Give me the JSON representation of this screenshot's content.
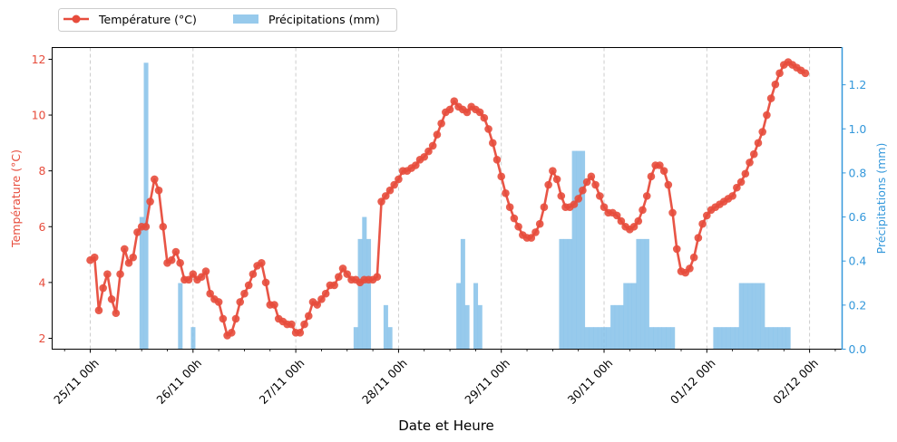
{
  "chart_data": {
    "type": "line+bar",
    "title": "",
    "xlabel": "Date et Heure",
    "ylabel_left": "Température (°C)",
    "ylabel_right": "Précipitations (mm)",
    "x_unit": "hours since 25/11 00h",
    "x_ticks": [
      {
        "hour": 0,
        "label": "25/11 00h"
      },
      {
        "hour": 24,
        "label": "26/11 00h"
      },
      {
        "hour": 48,
        "label": "27/11 00h"
      },
      {
        "hour": 72,
        "label": "28/11 00h"
      },
      {
        "hour": 96,
        "label": "29/11 00h"
      },
      {
        "hour": 120,
        "label": "30/11 00h"
      },
      {
        "hour": 144,
        "label": "01/12 00h"
      },
      {
        "hour": 168,
        "label": "02/12 00h"
      }
    ],
    "xlim": [
      -8.9,
      175.6
    ],
    "ylim_left": [
      1.61,
      12.42
    ],
    "ylim_right": [
      0,
      1.369
    ],
    "yticks_left": [
      "2",
      "4",
      "6",
      "8",
      "10",
      "12"
    ],
    "yticks_right": [
      "0.0",
      "0.2",
      "0.4",
      "0.6",
      "0.8",
      "1.0",
      "1.2"
    ],
    "grid": "x dashed",
    "legend_position": "above top-left",
    "colors": {
      "temperature": "#e74c3c",
      "precipitation": "#85c1e9",
      "right_axis": "#3498db"
    },
    "series": [
      {
        "name": "Température (°C)",
        "type": "line",
        "values": [
          4.8,
          4.9,
          3.0,
          3.8,
          4.3,
          3.4,
          2.9,
          4.3,
          5.2,
          4.7,
          4.9,
          5.8,
          6.0,
          6.0,
          6.9,
          7.7,
          7.3,
          6.0,
          4.7,
          4.8,
          5.1,
          4.7,
          4.1,
          4.1,
          4.3,
          4.1,
          4.2,
          4.4,
          3.6,
          3.4,
          3.3,
          2.7,
          2.1,
          2.2,
          2.7,
          3.3,
          3.6,
          3.9,
          4.3,
          4.6,
          4.7,
          4.0,
          3.2,
          3.2,
          2.7,
          2.6,
          2.5,
          2.5,
          2.2,
          2.2,
          2.5,
          2.8,
          3.3,
          3.2,
          3.4,
          3.6,
          3.9,
          3.9,
          4.2,
          4.5,
          4.3,
          4.1,
          4.1,
          4.0,
          4.1,
          4.1,
          4.1,
          4.2,
          6.9,
          7.1,
          7.3,
          7.5,
          7.7,
          8.0,
          8.0,
          8.1,
          8.2,
          8.4,
          8.5,
          8.7,
          8.9,
          9.3,
          9.7,
          10.1,
          10.2,
          10.5,
          10.3,
          10.2,
          10.1,
          10.3,
          10.2,
          10.1,
          9.9,
          9.5,
          9.0,
          8.4,
          7.8,
          7.2,
          6.7,
          6.3,
          6.0,
          5.7,
          5.6,
          5.6,
          5.8,
          6.1,
          6.7,
          7.5,
          8.0,
          7.7,
          7.1,
          6.7,
          6.7,
          6.8,
          7.0,
          7.3,
          7.6,
          7.8,
          7.5,
          7.1,
          6.7,
          6.5,
          6.5,
          6.4,
          6.2,
          6.0,
          5.9,
          6.0,
          6.2,
          6.6,
          7.1,
          7.8,
          8.2,
          8.2,
          8.0,
          7.5,
          6.5,
          5.2,
          4.4,
          4.35,
          4.5,
          4.9,
          5.6,
          6.1,
          6.4,
          6.6,
          6.7,
          6.8,
          6.9,
          7.0,
          7.1,
          7.4,
          7.6,
          7.9,
          8.3,
          8.6,
          9.0,
          9.4,
          10.0,
          10.6,
          11.1,
          11.5,
          11.8,
          11.9,
          11.8,
          11.7,
          11.6,
          11.5
        ]
      },
      {
        "name": "Précipitations (mm)",
        "type": "bar",
        "points": [
          [
            12,
            0.6
          ],
          [
            13,
            1.3
          ],
          [
            21,
            0.3
          ],
          [
            24,
            0.1
          ],
          [
            62,
            0.1
          ],
          [
            63,
            0.5
          ],
          [
            64,
            0.6
          ],
          [
            65,
            0.5
          ],
          [
            69,
            0.2
          ],
          [
            70,
            0.1
          ],
          [
            86,
            0.3
          ],
          [
            87,
            0.5
          ],
          [
            88,
            0.2
          ],
          [
            90,
            0.3
          ],
          [
            91,
            0.2
          ],
          [
            110,
            0.5
          ],
          [
            111,
            0.5
          ],
          [
            112,
            0.5
          ],
          [
            113,
            0.9
          ],
          [
            114,
            0.9
          ],
          [
            115,
            0.9
          ],
          [
            116,
            0.1
          ],
          [
            117,
            0.1
          ],
          [
            118,
            0.1
          ],
          [
            119,
            0.1
          ],
          [
            120,
            0.1
          ],
          [
            121,
            0.1
          ],
          [
            122,
            0.2
          ],
          [
            123,
            0.2
          ],
          [
            124,
            0.2
          ],
          [
            125,
            0.3
          ],
          [
            126,
            0.3
          ],
          [
            127,
            0.3
          ],
          [
            128,
            0.5
          ],
          [
            129,
            0.5
          ],
          [
            130,
            0.5
          ],
          [
            131,
            0.1
          ],
          [
            132,
            0.1
          ],
          [
            133,
            0.1
          ],
          [
            134,
            0.1
          ],
          [
            135,
            0.1
          ],
          [
            136,
            0.1
          ],
          [
            146,
            0.1
          ],
          [
            147,
            0.1
          ],
          [
            148,
            0.1
          ],
          [
            149,
            0.1
          ],
          [
            150,
            0.1
          ],
          [
            151,
            0.1
          ],
          [
            152,
            0.3
          ],
          [
            153,
            0.3
          ],
          [
            154,
            0.3
          ],
          [
            155,
            0.3
          ],
          [
            156,
            0.3
          ],
          [
            157,
            0.3
          ],
          [
            158,
            0.1
          ],
          [
            159,
            0.1
          ],
          [
            160,
            0.1
          ],
          [
            161,
            0.1
          ],
          [
            162,
            0.1
          ],
          [
            163,
            0.1
          ]
        ]
      }
    ]
  }
}
